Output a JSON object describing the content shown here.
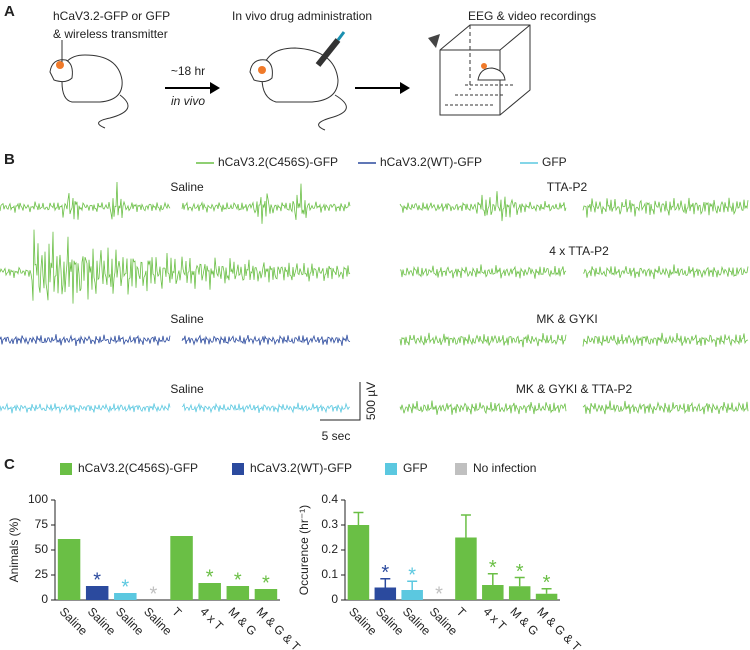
{
  "panel_a": {
    "label": "A",
    "step1": [
      "hCaV3.2-GFP or GFP",
      "& wireless transmitter"
    ],
    "interval": "~18 hr",
    "interval_note": "in vivo",
    "step2": "In vivo drug administration",
    "step3": "EEG & video recordings"
  },
  "panel_b": {
    "label": "B",
    "legend": [
      {
        "name": "hCaV3.2(C456S)-GFP",
        "color": "#6abf45"
      },
      {
        "name": "hCaV3.2(WT)-GFP",
        "color": "#2b4a9e"
      },
      {
        "name": "GFP",
        "color": "#5bc8e0"
      }
    ],
    "trace_labels": [
      "Saline",
      "TTA-P2",
      "4 x TTA-P2",
      "Saline",
      "MK & GYKI",
      "Saline",
      "MK & GYKI & TTA-P2"
    ],
    "scale_v": "500 µV",
    "scale_t": "5 sec"
  },
  "panel_c": {
    "label": "C",
    "legend": [
      {
        "name": "hCaV3.2(C456S)-GFP",
        "color": "#6abf45"
      },
      {
        "name": "hCaV3.2(WT)-GFP",
        "color": "#2b4a9e"
      },
      {
        "name": "GFP",
        "color": "#5bc8e0"
      },
      {
        "name": "No infection",
        "color": "#c0c0c0"
      }
    ]
  },
  "chart_data": [
    {
      "type": "bar",
      "y_label": "Animals (%)",
      "categories": [
        "Saline",
        "Saline",
        "Saline",
        "Saline",
        "T",
        "4 x T",
        "M & G",
        "M & G & T"
      ],
      "values": [
        61,
        14,
        7,
        0,
        64,
        17,
        14,
        11
      ],
      "colors": [
        "#6abf45",
        "#2b4a9e",
        "#5bc8e0",
        "#c0c0c0",
        "#6abf45",
        "#6abf45",
        "#6abf45",
        "#6abf45"
      ],
      "annotations": [
        null,
        "*",
        "*",
        "*",
        null,
        "*",
        "*",
        "*"
      ],
      "ylim": [
        0,
        100
      ],
      "yticks": [
        0,
        25,
        50,
        75,
        100
      ]
    },
    {
      "type": "bar",
      "y_label": "Occurence (hr⁻¹)",
      "categories": [
        "Saline",
        "Saline",
        "Saline",
        "Saline",
        "T",
        "4 x T",
        "M & G",
        "M & G & T"
      ],
      "values": [
        0.3,
        0.05,
        0.04,
        0,
        0.25,
        0.06,
        0.055,
        0.025
      ],
      "errors": [
        0.05,
        0.035,
        0.035,
        0,
        0.09,
        0.045,
        0.035,
        0.02
      ],
      "colors": [
        "#6abf45",
        "#2b4a9e",
        "#5bc8e0",
        "#c0c0c0",
        "#6abf45",
        "#6abf45",
        "#6abf45",
        "#6abf45"
      ],
      "annotations": [
        null,
        "*",
        "*",
        "*",
        null,
        "*",
        "*",
        "*"
      ],
      "ylim": [
        0,
        0.4
      ],
      "yticks": [
        0,
        0.1,
        0.2,
        0.3,
        0.4
      ]
    }
  ]
}
